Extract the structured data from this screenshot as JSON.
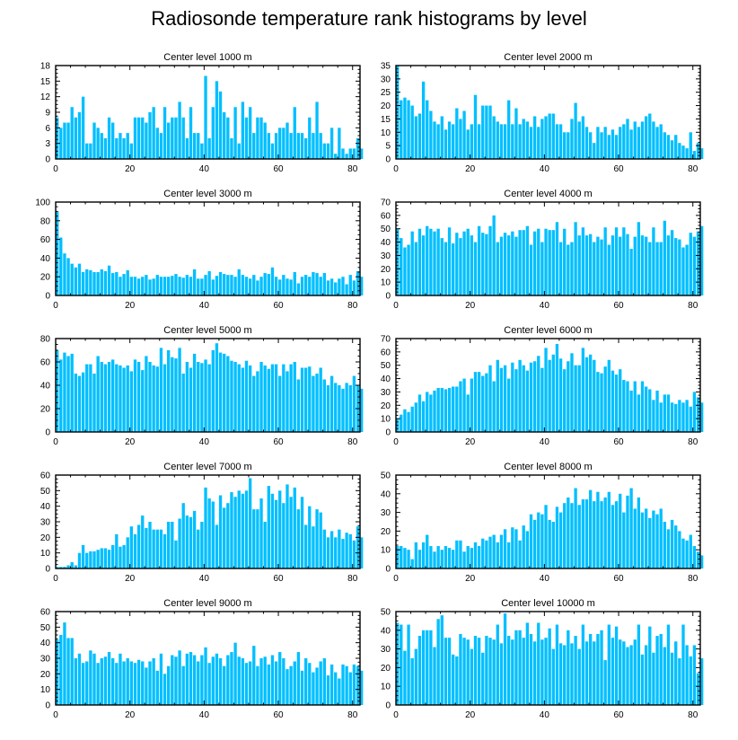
{
  "figure_title": "Radiosonde temperature rank histograms by level",
  "colors": {
    "bar": "#00bfff",
    "axis": "#000000",
    "background": "#ffffff"
  },
  "chart_data": [
    {
      "type": "bar",
      "title": "Center level 1000 m",
      "xlim": [
        0,
        82
      ],
      "ylim": [
        0,
        18
      ],
      "xticks": [
        0,
        20,
        40,
        60,
        80
      ],
      "yticks": [
        0,
        3,
        6,
        9,
        12,
        15,
        18
      ],
      "values": [
        8,
        6,
        7,
        7,
        10,
        8,
        9,
        12,
        3,
        3,
        7,
        6,
        5,
        4,
        8,
        7,
        4,
        5,
        4,
        5,
        3,
        8,
        8,
        8,
        7,
        9,
        10,
        6,
        5,
        10,
        7,
        8,
        8,
        11,
        8,
        4,
        10,
        5,
        5,
        3,
        16,
        4,
        10,
        15,
        13,
        9,
        8,
        4,
        10,
        3,
        11,
        8,
        10,
        5,
        8,
        8,
        7,
        5,
        3,
        5,
        6,
        6,
        7,
        5,
        10,
        5,
        5,
        4,
        8,
        5,
        11,
        5,
        3,
        3,
        6,
        1,
        6,
        2,
        1,
        2,
        2,
        4,
        2
      ]
    },
    {
      "type": "bar",
      "title": "Center level 2000 m",
      "xlim": [
        0,
        82
      ],
      "ylim": [
        0,
        35
      ],
      "xticks": [
        0,
        20,
        40,
        60,
        80
      ],
      "yticks": [
        0,
        5,
        10,
        15,
        20,
        25,
        30,
        35
      ],
      "values": [
        35,
        22,
        23,
        22,
        20,
        16,
        17,
        29,
        22,
        18,
        14,
        13,
        16,
        11,
        14,
        13,
        19,
        15,
        18,
        11,
        13,
        24,
        13,
        20,
        20,
        20,
        16,
        14,
        13,
        13,
        22,
        13,
        19,
        13,
        15,
        14,
        12,
        16,
        12,
        15,
        16,
        17,
        17,
        13,
        13,
        10,
        10,
        15,
        21,
        14,
        16,
        12,
        10,
        6,
        12,
        10,
        12,
        9,
        11,
        9,
        12,
        13,
        15,
        11,
        14,
        12,
        14,
        16,
        17,
        14,
        12,
        13,
        10,
        9,
        7,
        9,
        6,
        5,
        4,
        10,
        3,
        6,
        4
      ]
    },
    {
      "type": "bar",
      "title": "Center level 3000 m",
      "xlim": [
        0,
        82
      ],
      "ylim": [
        0,
        100
      ],
      "xticks": [
        0,
        20,
        40,
        60,
        80
      ],
      "yticks": [
        0,
        20,
        40,
        60,
        80,
        100
      ],
      "values": [
        90,
        62,
        45,
        40,
        34,
        30,
        34,
        25,
        28,
        27,
        25,
        25,
        28,
        26,
        32,
        24,
        25,
        20,
        23,
        27,
        20,
        20,
        18,
        20,
        22,
        17,
        18,
        22,
        20,
        20,
        20,
        21,
        23,
        20,
        19,
        22,
        20,
        28,
        18,
        18,
        22,
        26,
        17,
        21,
        25,
        23,
        22,
        22,
        20,
        28,
        22,
        20,
        18,
        22,
        16,
        20,
        24,
        23,
        30,
        20,
        17,
        22,
        18,
        17,
        25,
        13,
        20,
        22,
        20,
        25,
        24,
        20,
        24,
        16,
        18,
        14,
        18,
        20,
        12,
        22,
        16,
        26,
        20
      ]
    },
    {
      "type": "bar",
      "title": "Center level 4000 m",
      "xlim": [
        0,
        82
      ],
      "ylim": [
        0,
        70
      ],
      "xticks": [
        0,
        20,
        40,
        60,
        80
      ],
      "yticks": [
        0,
        10,
        20,
        30,
        40,
        50,
        60,
        70
      ],
      "values": [
        50,
        43,
        36,
        38,
        48,
        40,
        50,
        45,
        52,
        50,
        48,
        50,
        43,
        40,
        51,
        39,
        47,
        43,
        48,
        50,
        45,
        40,
        52,
        47,
        46,
        52,
        60,
        40,
        44,
        47,
        45,
        48,
        44,
        49,
        49,
        52,
        38,
        48,
        50,
        40,
        50,
        49,
        49,
        55,
        40,
        50,
        38,
        40,
        55,
        45,
        51,
        45,
        46,
        40,
        44,
        42,
        51,
        38,
        45,
        51,
        44,
        51,
        46,
        35,
        44,
        55,
        45,
        44,
        40,
        51,
        40,
        40,
        56,
        45,
        49,
        43,
        42,
        36,
        38,
        47,
        44,
        48,
        52
      ]
    },
    {
      "type": "bar",
      "title": "Center level 5000 m",
      "xlim": [
        0,
        82
      ],
      "ylim": [
        0,
        80
      ],
      "xticks": [
        0,
        20,
        40,
        60,
        80
      ],
      "yticks": [
        0,
        20,
        40,
        60,
        80
      ],
      "values": [
        70,
        62,
        68,
        65,
        67,
        50,
        48,
        51,
        58,
        58,
        50,
        65,
        60,
        58,
        60,
        62,
        58,
        57,
        55,
        57,
        52,
        62,
        60,
        53,
        65,
        60,
        57,
        56,
        72,
        58,
        70,
        64,
        63,
        72,
        50,
        60,
        55,
        67,
        60,
        59,
        62,
        58,
        70,
        76,
        68,
        67,
        65,
        61,
        60,
        58,
        55,
        61,
        57,
        48,
        52,
        60,
        57,
        54,
        58,
        58,
        48,
        58,
        52,
        58,
        60,
        45,
        55,
        55,
        56,
        48,
        50,
        55,
        45,
        40,
        48,
        42,
        40,
        37,
        42,
        40,
        48,
        40,
        37
      ]
    },
    {
      "type": "bar",
      "title": "Center level 6000 m",
      "xlim": [
        0,
        82
      ],
      "ylim": [
        0,
        70
      ],
      "xticks": [
        0,
        20,
        40,
        60,
        80
      ],
      "yticks": [
        0,
        10,
        20,
        30,
        40,
        50,
        60,
        70
      ],
      "values": [
        10,
        13,
        17,
        15,
        19,
        22,
        28,
        23,
        30,
        28,
        31,
        33,
        33,
        32,
        33,
        34,
        34,
        38,
        40,
        28,
        40,
        45,
        45,
        42,
        44,
        50,
        38,
        54,
        48,
        50,
        40,
        52,
        47,
        54,
        50,
        46,
        52,
        53,
        57,
        48,
        63,
        54,
        58,
        66,
        55,
        47,
        53,
        59,
        50,
        50,
        63,
        56,
        58,
        54,
        45,
        44,
        49,
        54,
        46,
        43,
        47,
        39,
        38,
        31,
        38,
        28,
        38,
        34,
        32,
        24,
        31,
        22,
        28,
        28,
        22,
        21,
        24,
        22,
        24,
        19,
        30,
        26,
        22
      ]
    },
    {
      "type": "bar",
      "title": "Center level 7000 m",
      "xlim": [
        0,
        82
      ],
      "ylim": [
        0,
        60
      ],
      "xticks": [
        0,
        20,
        40,
        60,
        80
      ],
      "yticks": [
        0,
        10,
        20,
        30,
        40,
        50,
        60
      ],
      "values": [
        1,
        1,
        1,
        2,
        4,
        2,
        10,
        15,
        10,
        11,
        11,
        12,
        13,
        13,
        12,
        15,
        22,
        14,
        15,
        20,
        27,
        22,
        28,
        34,
        26,
        30,
        25,
        25,
        25,
        22,
        30,
        30,
        18,
        32,
        42,
        34,
        33,
        37,
        25,
        30,
        52,
        45,
        43,
        28,
        47,
        39,
        42,
        49,
        46,
        50,
        48,
        50,
        58,
        38,
        38,
        45,
        30,
        53,
        48,
        44,
        50,
        42,
        54,
        46,
        52,
        38,
        46,
        28,
        40,
        27,
        38,
        36,
        25,
        20,
        24,
        20,
        25,
        19,
        23,
        22,
        18,
        27,
        20
      ]
    },
    {
      "type": "bar",
      "title": "Center level 8000 m",
      "xlim": [
        0,
        82
      ],
      "ylim": [
        0,
        50
      ],
      "xticks": [
        0,
        20,
        40,
        60,
        80
      ],
      "yticks": [
        0,
        10,
        20,
        30,
        40,
        50
      ],
      "values": [
        12,
        12,
        11,
        10,
        5,
        14,
        10,
        14,
        18,
        12,
        9,
        12,
        10,
        12,
        11,
        10,
        15,
        15,
        9,
        12,
        11,
        14,
        12,
        16,
        15,
        17,
        18,
        14,
        18,
        21,
        14,
        22,
        21,
        15,
        23,
        20,
        29,
        26,
        30,
        29,
        34,
        26,
        25,
        33,
        30,
        35,
        38,
        35,
        43,
        34,
        37,
        37,
        42,
        36,
        41,
        36,
        38,
        41,
        34,
        36,
        40,
        30,
        39,
        43,
        32,
        38,
        30,
        32,
        27,
        31,
        29,
        32,
        25,
        21,
        26,
        23,
        20,
        16,
        15,
        18,
        12,
        9,
        7
      ]
    },
    {
      "type": "bar",
      "title": "Center level 9000 m",
      "xlim": [
        0,
        82
      ],
      "ylim": [
        0,
        60
      ],
      "xticks": [
        0,
        20,
        40,
        60,
        80
      ],
      "yticks": [
        0,
        10,
        20,
        30,
        40,
        50,
        60
      ],
      "values": [
        42,
        45,
        53,
        43,
        43,
        30,
        33,
        27,
        28,
        35,
        33,
        27,
        30,
        31,
        34,
        30,
        27,
        33,
        28,
        30,
        28,
        27,
        29,
        28,
        24,
        28,
        30,
        22,
        33,
        20,
        25,
        32,
        31,
        35,
        25,
        33,
        34,
        32,
        28,
        32,
        37,
        27,
        31,
        33,
        30,
        25,
        32,
        34,
        40,
        31,
        30,
        27,
        28,
        38,
        25,
        30,
        31,
        26,
        32,
        28,
        34,
        30,
        23,
        25,
        28,
        34,
        22,
        30,
        27,
        21,
        24,
        28,
        30,
        19,
        26,
        21,
        17,
        26,
        25,
        21,
        26,
        25,
        22
      ]
    },
    {
      "type": "bar",
      "title": "Center level 10000 m",
      "xlim": [
        0,
        82
      ],
      "ylim": [
        0,
        50
      ],
      "xticks": [
        0,
        20,
        40,
        60,
        80
      ],
      "yticks": [
        0,
        10,
        20,
        30,
        40,
        50
      ],
      "values": [
        44,
        43,
        29,
        43,
        25,
        30,
        37,
        40,
        40,
        40,
        31,
        46,
        48,
        36,
        36,
        27,
        26,
        38,
        36,
        35,
        30,
        37,
        36,
        28,
        37,
        36,
        35,
        43,
        33,
        49,
        37,
        35,
        40,
        40,
        36,
        44,
        38,
        34,
        44,
        35,
        36,
        41,
        30,
        43,
        33,
        32,
        40,
        33,
        37,
        30,
        43,
        34,
        38,
        34,
        38,
        40,
        24,
        43,
        36,
        42,
        35,
        34,
        31,
        32,
        35,
        43,
        27,
        32,
        42,
        28,
        37,
        38,
        31,
        43,
        28,
        34,
        25,
        43,
        32,
        26,
        32,
        17,
        25
      ]
    }
  ]
}
